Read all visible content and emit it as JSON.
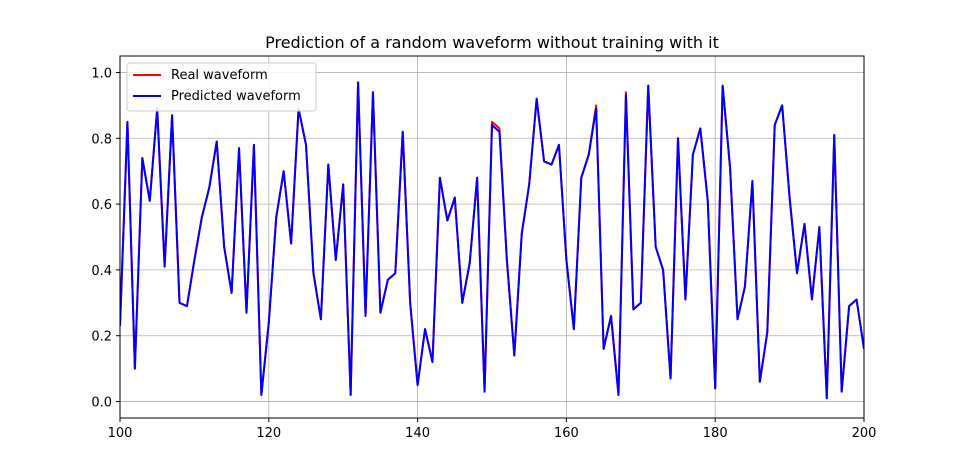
{
  "chart_data": {
    "type": "line",
    "title": "Prediction of a random waveform without training with it",
    "xlabel": "",
    "ylabel": "",
    "xlim": [
      100,
      200
    ],
    "ylim": [
      -0.05,
      1.05
    ],
    "grid": true,
    "legend_position": "top-left",
    "xticks": [
      100,
      120,
      140,
      160,
      180,
      200
    ],
    "yticks": [
      0.0,
      0.2,
      0.4,
      0.6,
      0.8,
      1.0
    ],
    "xtick_labels": [
      "100",
      "120",
      "140",
      "160",
      "180",
      "200"
    ],
    "ytick_labels": [
      "0.0",
      "0.2",
      "0.4",
      "0.6",
      "0.8",
      "1.0"
    ],
    "x": [
      100,
      101,
      102,
      103,
      104,
      105,
      106,
      107,
      108,
      109,
      110,
      111,
      112,
      113,
      114,
      115,
      116,
      117,
      118,
      119,
      120,
      121,
      122,
      123,
      124,
      125,
      126,
      127,
      128,
      129,
      130,
      131,
      132,
      133,
      134,
      135,
      136,
      137,
      138,
      139,
      140,
      141,
      142,
      143,
      144,
      145,
      146,
      147,
      148,
      149,
      150,
      151,
      152,
      153,
      154,
      155,
      156,
      157,
      158,
      159,
      160,
      161,
      162,
      163,
      164,
      165,
      166,
      167,
      168,
      169,
      170,
      171,
      172,
      173,
      174,
      175,
      176,
      177,
      178,
      179,
      180,
      181,
      182,
      183,
      184,
      185,
      186,
      187,
      188,
      189,
      190,
      191,
      192,
      193,
      194,
      195,
      196,
      197,
      198,
      199,
      200
    ],
    "series": [
      {
        "name": "Real waveform",
        "color": "#ff0000",
        "values": [
          0.23,
          0.85,
          0.1,
          0.74,
          0.61,
          0.89,
          0.41,
          0.87,
          0.3,
          0.29,
          0.43,
          0.56,
          0.65,
          0.79,
          0.47,
          0.33,
          0.77,
          0.27,
          0.78,
          0.02,
          0.24,
          0.56,
          0.7,
          0.48,
          0.89,
          0.78,
          0.39,
          0.25,
          0.72,
          0.43,
          0.66,
          0.02,
          0.97,
          0.26,
          0.94,
          0.27,
          0.37,
          0.39,
          0.82,
          0.3,
          0.05,
          0.22,
          0.12,
          0.68,
          0.55,
          0.62,
          0.3,
          0.42,
          0.68,
          0.03,
          0.85,
          0.83,
          0.43,
          0.14,
          0.51,
          0.66,
          0.92,
          0.73,
          0.72,
          0.78,
          0.43,
          0.22,
          0.68,
          0.75,
          0.9,
          0.16,
          0.26,
          0.02,
          0.94,
          0.28,
          0.3,
          0.96,
          0.47,
          0.4,
          0.07,
          0.8,
          0.31,
          0.75,
          0.83,
          0.61,
          0.04,
          0.96,
          0.71,
          0.25,
          0.35,
          0.67,
          0.06,
          0.21,
          0.84,
          0.9,
          0.62,
          0.39,
          0.54,
          0.31,
          0.53,
          0.01,
          0.81,
          0.03,
          0.29,
          0.31,
          0.16
        ]
      },
      {
        "name": "Predicted waveform",
        "color": "#0000ff",
        "values": [
          0.23,
          0.85,
          0.1,
          0.74,
          0.61,
          0.89,
          0.41,
          0.87,
          0.3,
          0.29,
          0.43,
          0.56,
          0.65,
          0.79,
          0.47,
          0.33,
          0.77,
          0.27,
          0.78,
          0.02,
          0.24,
          0.56,
          0.7,
          0.48,
          0.89,
          0.78,
          0.39,
          0.25,
          0.72,
          0.43,
          0.66,
          0.02,
          0.97,
          0.26,
          0.94,
          0.27,
          0.37,
          0.39,
          0.82,
          0.3,
          0.05,
          0.22,
          0.12,
          0.68,
          0.55,
          0.62,
          0.3,
          0.42,
          0.68,
          0.03,
          0.84,
          0.82,
          0.43,
          0.14,
          0.51,
          0.66,
          0.92,
          0.73,
          0.72,
          0.78,
          0.43,
          0.22,
          0.68,
          0.75,
          0.89,
          0.16,
          0.26,
          0.02,
          0.93,
          0.28,
          0.3,
          0.96,
          0.47,
          0.4,
          0.07,
          0.8,
          0.31,
          0.75,
          0.83,
          0.61,
          0.04,
          0.96,
          0.71,
          0.25,
          0.35,
          0.67,
          0.06,
          0.21,
          0.84,
          0.9,
          0.62,
          0.39,
          0.54,
          0.31,
          0.53,
          0.01,
          0.81,
          0.03,
          0.29,
          0.31,
          0.16
        ]
      }
    ]
  }
}
